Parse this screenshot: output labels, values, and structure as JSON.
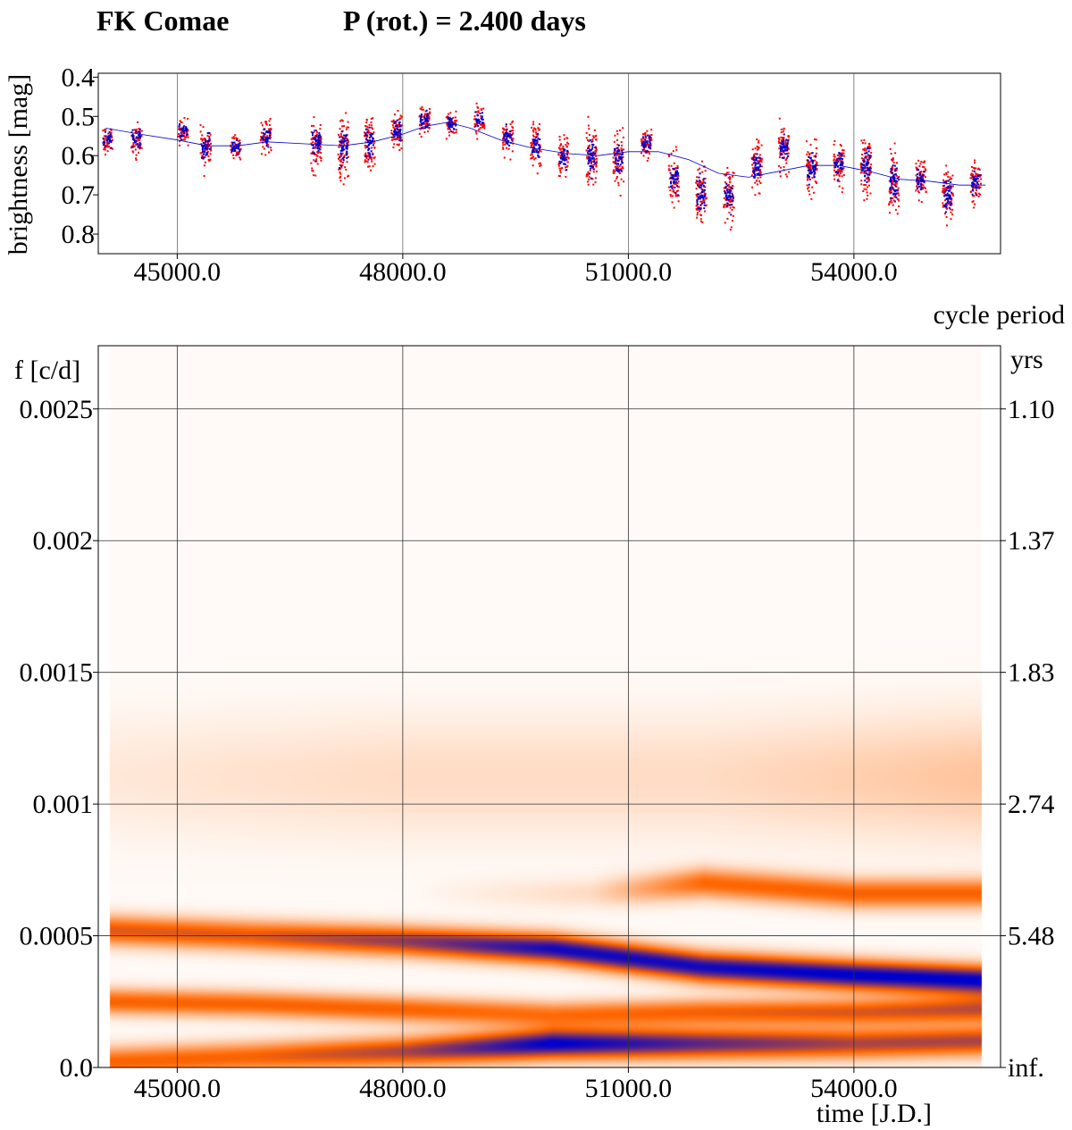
{
  "header": {
    "star_name": "FK Comae",
    "rotation_label": "P (rot.) = 2.400 days"
  },
  "chart_data": [
    {
      "type": "scatter",
      "panel": "light-curve",
      "ylabel": "brightness [mag]",
      "xlim": [
        43950,
        55950
      ],
      "ylim": [
        0.85,
        0.39
      ],
      "y_inverted": true,
      "grid": true,
      "xticks": [
        45000,
        48000,
        51000,
        54000
      ],
      "xtick_labels": [
        "45000.0",
        "48000.0",
        "51000.0",
        "54000.0"
      ],
      "yticks": [
        0.4,
        0.5,
        0.6,
        0.7,
        0.8
      ],
      "ytick_labels": [
        "0.4",
        "0.5",
        "0.6",
        "0.7",
        "0.8"
      ],
      "colors": {
        "series_a": "#ff0000",
        "series_b": "#0000cc",
        "trend": "#0000cc"
      },
      "observing_seasons": [
        {
          "x": 44070,
          "mean": 0.56,
          "spread": 0.03
        },
        {
          "x": 44460,
          "mean": 0.56,
          "spread": 0.04
        },
        {
          "x": 45080,
          "mean": 0.54,
          "spread": 0.03
        },
        {
          "x": 45380,
          "mean": 0.58,
          "spread": 0.05
        },
        {
          "x": 45780,
          "mean": 0.58,
          "spread": 0.03
        },
        {
          "x": 46180,
          "mean": 0.55,
          "spread": 0.04
        },
        {
          "x": 46850,
          "mean": 0.57,
          "spread": 0.06
        },
        {
          "x": 47210,
          "mean": 0.58,
          "spread": 0.07
        },
        {
          "x": 47560,
          "mean": 0.57,
          "spread": 0.06
        },
        {
          "x": 47920,
          "mean": 0.54,
          "spread": 0.05
        },
        {
          "x": 48290,
          "mean": 0.51,
          "spread": 0.04
        },
        {
          "x": 48650,
          "mean": 0.52,
          "spread": 0.03
        },
        {
          "x": 49020,
          "mean": 0.51,
          "spread": 0.03
        },
        {
          "x": 49400,
          "mean": 0.55,
          "spread": 0.04
        },
        {
          "x": 49770,
          "mean": 0.58,
          "spread": 0.05
        },
        {
          "x": 50140,
          "mean": 0.6,
          "spread": 0.05
        },
        {
          "x": 50510,
          "mean": 0.6,
          "spread": 0.07
        },
        {
          "x": 50870,
          "mean": 0.61,
          "spread": 0.06
        },
        {
          "x": 51240,
          "mean": 0.57,
          "spread": 0.04
        },
        {
          "x": 51610,
          "mean": 0.66,
          "spread": 0.06
        },
        {
          "x": 51970,
          "mean": 0.7,
          "spread": 0.07
        },
        {
          "x": 52340,
          "mean": 0.7,
          "spread": 0.06
        },
        {
          "x": 52710,
          "mean": 0.63,
          "spread": 0.06
        },
        {
          "x": 53070,
          "mean": 0.58,
          "spread": 0.06
        },
        {
          "x": 53440,
          "mean": 0.63,
          "spread": 0.06
        },
        {
          "x": 53800,
          "mean": 0.62,
          "spread": 0.05
        },
        {
          "x": 54160,
          "mean": 0.63,
          "spread": 0.07
        },
        {
          "x": 54530,
          "mean": 0.67,
          "spread": 0.07
        },
        {
          "x": 54890,
          "mean": 0.66,
          "spread": 0.05
        },
        {
          "x": 55250,
          "mean": 0.7,
          "spread": 0.06
        },
        {
          "x": 55620,
          "mean": 0.67,
          "spread": 0.05
        }
      ],
      "trend": {
        "x": [
          44050,
          44500,
          45000,
          45400,
          45800,
          46200,
          46700,
          47200,
          47600,
          48000,
          48300,
          48600,
          48900,
          49300,
          49700,
          50200,
          50600,
          51000,
          51400,
          51800,
          52200,
          52600,
          53000,
          53400,
          53800,
          54200,
          54600,
          55000,
          55400,
          55750
        ],
        "y": [
          0.53,
          0.545,
          0.56,
          0.575,
          0.575,
          0.565,
          0.57,
          0.575,
          0.565,
          0.545,
          0.525,
          0.515,
          0.53,
          0.56,
          0.58,
          0.595,
          0.6,
          0.59,
          0.59,
          0.61,
          0.645,
          0.655,
          0.64,
          0.625,
          0.625,
          0.64,
          0.66,
          0.665,
          0.675,
          0.675
        ]
      }
    },
    {
      "type": "heatmap",
      "panel": "time-frequency",
      "xlabel": "time [J.D.]",
      "ylabel": "f [c/d]",
      "right_axis_title": "cycle period",
      "right_axis_unit": "yrs",
      "xlim": [
        43950,
        55950
      ],
      "ylim": [
        0.0,
        0.00274
      ],
      "grid": true,
      "xticks": [
        45000,
        48000,
        51000,
        54000
      ],
      "xtick_labels": [
        "45000.0",
        "48000.0",
        "51000.0",
        "54000.0"
      ],
      "yticks": [
        0.0,
        0.0005,
        0.001,
        0.0015,
        0.002,
        0.0025
      ],
      "ytick_labels": [
        "0.0",
        "0.0005",
        "0.001",
        "0.0015",
        "0.002",
        "0.0025"
      ],
      "right_tick_labels": [
        "inf.",
        "5.48",
        "2.74",
        "1.83",
        "1.37",
        "1.10"
      ],
      "colors": {
        "low": "#ffffff",
        "mid": "#ff6600",
        "high": "#0000cc"
      },
      "data_extent_x": [
        44100,
        55700
      ],
      "ridges": [
        {
          "xs": [
            44100,
            46000,
            48000,
            50000,
            52000,
            54000,
            55700
          ],
          "fs": [
            0.00052,
            0.0005,
            0.00048,
            0.00045,
            0.00038,
            0.00035,
            0.00033
          ],
          "amps": [
            0.55,
            0.55,
            0.7,
            0.95,
            0.95,
            1.0,
            1.0
          ],
          "sigma": 4e-05
        },
        {
          "xs": [
            44100,
            46000,
            48000,
            50000,
            52000,
            54000,
            55700
          ],
          "fs": [
            2e-05,
            4e-05,
            6e-05,
            9e-05,
            9e-05,
            9e-05,
            0.0001
          ],
          "amps": [
            0.5,
            0.5,
            0.65,
            1.0,
            0.8,
            0.65,
            0.65
          ],
          "sigma": 4e-05
        },
        {
          "xs": [
            44100,
            46000,
            48000,
            50000,
            52000,
            54000,
            55700
          ],
          "fs": [
            0.00025,
            0.00024,
            0.00022,
            0.0002,
            0.00021,
            0.00021,
            0.00022
          ],
          "amps": [
            0.5,
            0.5,
            0.5,
            0.45,
            0.5,
            0.55,
            0.6
          ],
          "sigma": 3.5e-05
        },
        {
          "xs": [
            44100,
            48000,
            50500,
            52000,
            54000,
            55700
          ],
          "fs": [
            0.0007,
            0.00066,
            0.00066,
            0.0007,
            0.00066,
            0.00066
          ],
          "amps": [
            0.0,
            0.0,
            0.1,
            0.48,
            0.5,
            0.5
          ],
          "sigma": 4e-05
        },
        {
          "xs": [
            44100,
            48000,
            52000,
            54000,
            55700
          ],
          "fs": [
            0.0011,
            0.0011,
            0.0011,
            0.0011,
            0.0011
          ],
          "amps": [
            0.06,
            0.1,
            0.1,
            0.14,
            0.18
          ],
          "sigma": 0.00016
        }
      ]
    }
  ]
}
